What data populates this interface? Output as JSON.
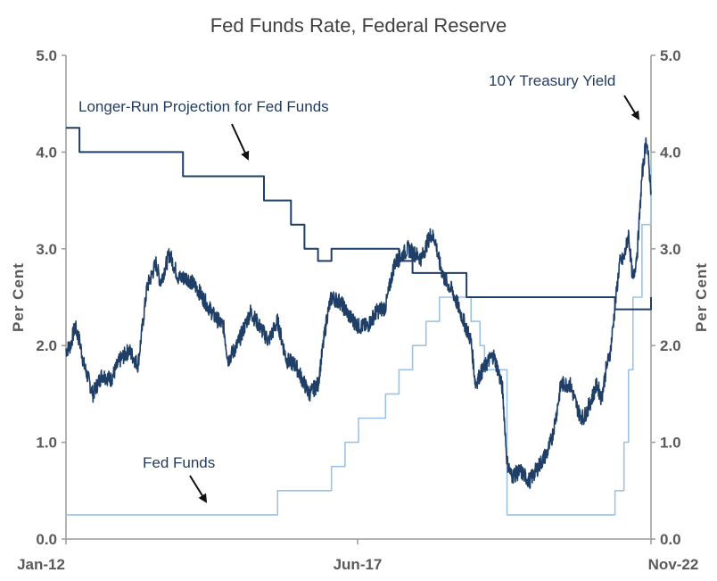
{
  "chart_data": {
    "type": "line",
    "title": "Fed Funds Rate, Federal Reserve",
    "ylabel_left": "Per Cent",
    "ylabel_right": "Per Cent",
    "xlabel": "",
    "ylim": [
      0,
      5
    ],
    "yticks": [
      "0.0",
      "1.0",
      "2.0",
      "3.0",
      "4.0",
      "5.0"
    ],
    "xticks": [
      "Jan-12",
      "Jun-17",
      "Nov-22"
    ],
    "grid": false,
    "annotations": {
      "projection": "Longer-Run Projection for Fed Funds",
      "treasury": "10Y Treasury Yield",
      "fedfunds": "Fed Funds"
    },
    "colors": {
      "treasury": "#1f3f66",
      "projection": "#1f3f66",
      "fedfunds": "#9cc3e6",
      "axis": "#9a9a9a",
      "text": "#5a5a5a"
    },
    "series": [
      {
        "id": "projection",
        "step": true,
        "x": [
          "2012-01",
          "2012-04",
          "2014-03",
          "2015-09",
          "2016-03",
          "2016-06",
          "2016-09",
          "2016-12",
          "2017-03",
          "2017-06",
          "2018-03",
          "2018-06",
          "2019-03",
          "2019-06",
          "2021-03",
          "2021-12",
          "2022-03",
          "2022-11"
        ],
        "y": [
          4.25,
          4.0,
          3.75,
          3.5,
          3.25,
          3.0,
          2.875,
          3.0,
          3.0,
          3.0,
          2.875,
          2.75,
          2.75,
          2.5,
          2.5,
          2.5,
          2.375,
          2.5
        ]
      },
      {
        "id": "fedfunds",
        "step": true,
        "x": [
          "2012-01",
          "2015-12",
          "2016-12",
          "2017-03",
          "2017-06",
          "2017-12",
          "2018-03",
          "2018-06",
          "2018-09",
          "2018-12",
          "2019-07",
          "2019-09",
          "2019-10",
          "2020-03",
          "2022-03",
          "2022-05",
          "2022-06",
          "2022-07",
          "2022-09",
          "2022-11"
        ],
        "y": [
          0.25,
          0.5,
          0.75,
          1.0,
          1.25,
          1.5,
          1.75,
          2.0,
          2.25,
          2.5,
          2.25,
          2.0,
          1.75,
          0.25,
          0.5,
          1.0,
          1.75,
          2.5,
          3.25,
          4.0
        ]
      },
      {
        "id": "treasury",
        "step": false,
        "x": [
          "2012-01",
          "2012-02",
          "2012-03",
          "2012-04",
          "2012-05",
          "2012-07",
          "2012-09",
          "2012-11",
          "2013-01",
          "2013-03",
          "2013-05",
          "2013-07",
          "2013-09",
          "2013-10",
          "2013-12",
          "2014-02",
          "2014-04",
          "2014-06",
          "2014-08",
          "2014-10",
          "2014-12",
          "2015-01",
          "2015-03",
          "2015-06",
          "2015-08",
          "2015-10",
          "2015-12",
          "2016-02",
          "2016-04",
          "2016-07",
          "2016-09",
          "2016-11",
          "2016-12",
          "2017-02",
          "2017-04",
          "2017-06",
          "2017-08",
          "2017-10",
          "2017-12",
          "2018-02",
          "2018-05",
          "2018-08",
          "2018-10",
          "2018-11",
          "2018-12",
          "2019-01",
          "2019-03",
          "2019-05",
          "2019-07",
          "2019-08",
          "2019-09",
          "2019-11",
          "2019-12",
          "2020-01",
          "2020-02",
          "2020-03",
          "2020-04",
          "2020-06",
          "2020-08",
          "2020-10",
          "2020-12",
          "2021-01",
          "2021-02",
          "2021-03",
          "2021-05",
          "2021-07",
          "2021-08",
          "2021-09",
          "2021-11",
          "2021-12",
          "2022-01",
          "2022-02",
          "2022-03",
          "2022-04",
          "2022-05",
          "2022-06",
          "2022-07",
          "2022-08",
          "2022-09",
          "2022-10",
          "2022-11"
        ],
        "y": [
          1.95,
          2.0,
          2.2,
          2.05,
          1.8,
          1.5,
          1.7,
          1.65,
          1.85,
          1.95,
          1.8,
          2.6,
          2.85,
          2.65,
          2.95,
          2.7,
          2.7,
          2.6,
          2.45,
          2.3,
          2.2,
          1.85,
          2.0,
          2.35,
          2.2,
          2.05,
          2.25,
          1.85,
          1.8,
          1.5,
          1.6,
          2.3,
          2.5,
          2.45,
          2.3,
          2.2,
          2.2,
          2.35,
          2.4,
          2.85,
          3.0,
          2.9,
          3.15,
          3.1,
          2.85,
          2.7,
          2.55,
          2.3,
          2.05,
          1.6,
          1.7,
          1.85,
          1.9,
          1.75,
          1.55,
          0.8,
          0.65,
          0.7,
          0.6,
          0.75,
          0.9,
          1.05,
          1.3,
          1.6,
          1.6,
          1.3,
          1.25,
          1.35,
          1.6,
          1.45,
          1.75,
          1.95,
          2.4,
          2.85,
          2.9,
          3.15,
          2.65,
          3.0,
          3.75,
          4.15,
          3.6
        ]
      }
    ]
  }
}
